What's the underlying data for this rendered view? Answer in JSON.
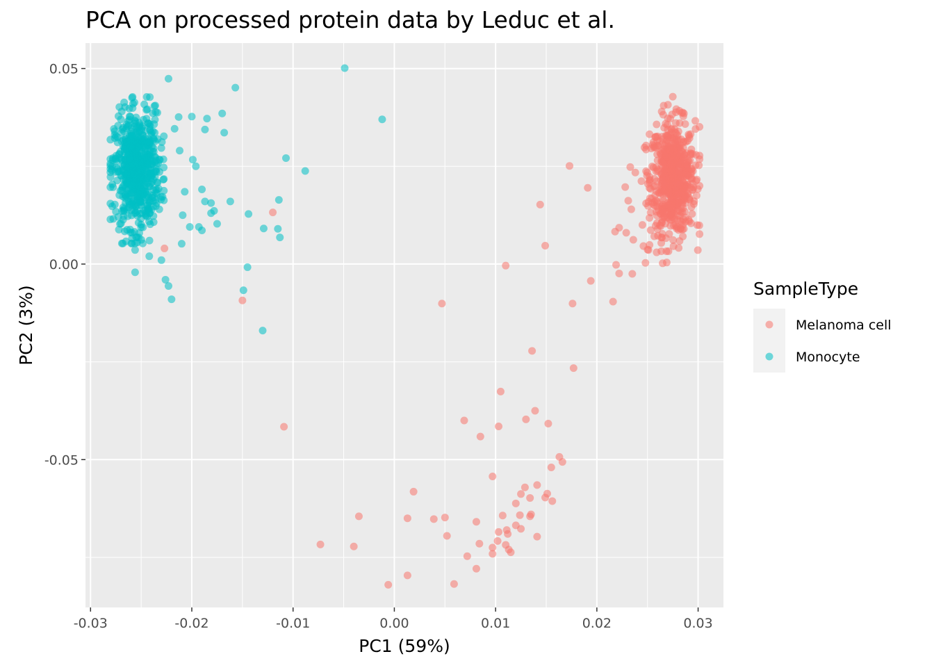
{
  "chart_data": {
    "type": "scatter",
    "title": "PCA on processed protein data by Leduc et al.",
    "xlabel": "PC1 (59%)",
    "ylabel": "PC2 (3%)",
    "xlim": [
      -0.0305,
      0.0325
    ],
    "ylim": [
      -0.0878,
      0.0565
    ],
    "x_ticks": [
      {
        "value": -0.03,
        "label": "-0.03"
      },
      {
        "value": -0.02,
        "label": "-0.02"
      },
      {
        "value": -0.01,
        "label": "-0.01"
      },
      {
        "value": 0.0,
        "label": "0.00"
      },
      {
        "value": 0.01,
        "label": "0.01"
      },
      {
        "value": 0.02,
        "label": "0.02"
      },
      {
        "value": 0.03,
        "label": "0.03"
      }
    ],
    "y_ticks": [
      {
        "value": 0.05,
        "label": "0.05"
      },
      {
        "value": 0.0,
        "label": "0.00"
      },
      {
        "value": -0.05,
        "label": "-0.05"
      }
    ],
    "grid": true,
    "legend": {
      "title": "SampleType",
      "position": "right",
      "entries": [
        "Melanoma cell",
        "Monocyte"
      ]
    },
    "series": [
      {
        "name": "Melanoma cell",
        "color": "#F8766D",
        "cluster": {
          "center": [
            0.0275,
            0.022
          ],
          "sd": [
            0.0011,
            0.0072
          ],
          "count": 650
        },
        "points": [
          [
            0.0173,
            0.0251
          ],
          [
            0.0191,
            0.0195
          ],
          [
            0.0144,
            0.0152
          ],
          [
            0.0149,
            0.0047
          ],
          [
            0.011,
            -0.0004
          ],
          [
            0.0194,
            -0.0043
          ],
          [
            0.0176,
            -0.0101
          ],
          [
            0.0047,
            -0.0101
          ],
          [
            0.0216,
            -0.0096
          ],
          [
            0.0136,
            -0.0222
          ],
          [
            0.0177,
            -0.0266
          ],
          [
            0.0105,
            -0.0326
          ],
          [
            0.0139,
            -0.0375
          ],
          [
            0.013,
            -0.0397
          ],
          [
            0.0069,
            -0.04
          ],
          [
            0.0103,
            -0.0415
          ],
          [
            0.0152,
            -0.0408
          ],
          [
            0.0085,
            -0.0441
          ],
          [
            0.0163,
            -0.0493
          ],
          [
            0.0166,
            -0.0506
          ],
          [
            0.0155,
            -0.052
          ],
          [
            0.0097,
            -0.0543
          ],
          [
            0.0141,
            -0.0565
          ],
          [
            0.0129,
            -0.0571
          ],
          [
            0.0019,
            -0.0582
          ],
          [
            0.0125,
            -0.0588
          ],
          [
            0.0151,
            -0.0587
          ],
          [
            0.0134,
            -0.0598
          ],
          [
            0.0149,
            -0.0597
          ],
          [
            0.0156,
            -0.0606
          ],
          [
            0.012,
            -0.0612
          ],
          [
            0.0107,
            -0.0643
          ],
          [
            0.0135,
            -0.064
          ],
          [
            0.0134,
            -0.0645
          ],
          [
            0.0124,
            -0.0642
          ],
          [
            0.0013,
            -0.065
          ],
          [
            0.005,
            -0.0648
          ],
          [
            0.0039,
            -0.0652
          ],
          [
            -0.0035,
            -0.0645
          ],
          [
            0.0081,
            -0.0659
          ],
          [
            0.012,
            -0.0668
          ],
          [
            0.0125,
            -0.0677
          ],
          [
            0.0111,
            -0.068
          ],
          [
            0.0103,
            -0.0685
          ],
          [
            0.0112,
            -0.069
          ],
          [
            0.0052,
            -0.0695
          ],
          [
            0.0141,
            -0.0697
          ],
          [
            0.0102,
            -0.0708
          ],
          [
            0.0084,
            -0.0715
          ],
          [
            0.011,
            -0.0718
          ],
          [
            0.0097,
            -0.0725
          ],
          [
            0.0113,
            -0.073
          ],
          [
            0.0115,
            -0.0737
          ],
          [
            0.0097,
            -0.0741
          ],
          [
            0.0072,
            -0.0747
          ],
          [
            -0.0073,
            -0.0717
          ],
          [
            -0.004,
            -0.0722
          ],
          [
            0.0081,
            -0.0779
          ],
          [
            0.0013,
            -0.0796
          ],
          [
            -0.0006,
            -0.082
          ],
          [
            0.0059,
            -0.0818
          ],
          [
            -0.0109,
            -0.0416
          ],
          [
            -0.015,
            -0.0093
          ],
          [
            -0.012,
            0.0132
          ],
          [
            -0.0227,
            0.004
          ],
          [
            0.0233,
            0.0248
          ],
          [
            0.0228,
            0.0197
          ],
          [
            0.0231,
            0.0162
          ],
          [
            0.0234,
            0.014
          ],
          [
            0.0218,
            0.0083
          ],
          [
            0.0222,
            0.0093
          ],
          [
            0.0229,
            0.008
          ],
          [
            0.0236,
            0.0062
          ],
          [
            0.0246,
            0.0046
          ],
          [
            0.0219,
            -0.0002
          ],
          [
            0.0222,
            -0.0024
          ],
          [
            0.0235,
            -0.0025
          ],
          [
            0.0248,
            0.0003
          ],
          [
            0.0251,
            0.0036
          ],
          [
            0.0252,
            0.0049
          ],
          [
            0.0259,
            0.003
          ],
          [
            0.0265,
            0.0002
          ],
          [
            0.0269,
            0.0004
          ],
          [
            0.0258,
            0.0098
          ],
          [
            0.0245,
            0.01
          ],
          [
            0.0252,
            0.0118
          ],
          [
            0.0238,
            0.0234
          ],
          [
            0.0244,
            0.0212
          ],
          [
            0.0247,
            0.0298
          ],
          [
            0.0252,
            0.0332
          ],
          [
            0.0259,
            0.0357
          ],
          [
            0.0264,
            0.039
          ],
          [
            0.0275,
            0.0428
          ],
          [
            0.0266,
            0.0405
          ],
          [
            0.0286,
            0.0385
          ],
          [
            0.0292,
            0.0265
          ],
          [
            0.0289,
            0.0228
          ],
          [
            0.0287,
            0.0168
          ]
        ]
      },
      {
        "name": "Monocyte",
        "color": "#00BFC4",
        "cluster": {
          "center": [
            -0.0254,
            0.024
          ],
          "sd": [
            0.0011,
            0.0072
          ],
          "count": 650
        },
        "points": [
          [
            -0.0049,
            0.0501
          ],
          [
            -0.0223,
            0.0474
          ],
          [
            -0.0157,
            0.0451
          ],
          [
            -0.0012,
            0.037
          ],
          [
            -0.0107,
            0.0271
          ],
          [
            -0.0088,
            0.0238
          ],
          [
            -0.0162,
            0.016
          ],
          [
            -0.0114,
            0.0164
          ],
          [
            -0.0144,
            0.0128
          ],
          [
            -0.0129,
            0.0091
          ],
          [
            -0.0115,
            0.009
          ],
          [
            -0.0113,
            0.0068
          ],
          [
            -0.0145,
            -0.0008
          ],
          [
            -0.0149,
            -0.0067
          ],
          [
            -0.013,
            -0.017
          ],
          [
            -0.017,
            0.0385
          ],
          [
            -0.0168,
            0.0336
          ],
          [
            -0.0185,
            0.0372
          ],
          [
            -0.0187,
            0.0344
          ],
          [
            -0.02,
            0.0377
          ],
          [
            -0.0213,
            0.0376
          ],
          [
            -0.0199,
            0.0267
          ],
          [
            -0.0196,
            0.025
          ],
          [
            -0.019,
            0.0191
          ],
          [
            -0.0187,
            0.016
          ],
          [
            -0.0181,
            0.0156
          ],
          [
            -0.0178,
            0.0136
          ],
          [
            -0.0181,
            0.013
          ],
          [
            -0.0175,
            0.0103
          ],
          [
            -0.0193,
            0.0095
          ],
          [
            -0.019,
            0.0086
          ],
          [
            -0.0202,
            0.0095
          ],
          [
            -0.021,
            0.0052
          ],
          [
            -0.0226,
            -0.004
          ],
          [
            -0.0223,
            -0.0056
          ],
          [
            -0.022,
            -0.009
          ],
          [
            -0.0209,
            0.0125
          ],
          [
            -0.0207,
            0.0185
          ],
          [
            -0.0212,
            0.029
          ],
          [
            -0.0217,
            0.0346
          ],
          [
            -0.0237,
            0.0404
          ],
          [
            -0.0258,
            0.041
          ],
          [
            -0.0259,
            0.0425
          ],
          [
            -0.0244,
            0.0396
          ],
          [
            -0.0234,
            0.0387
          ],
          [
            -0.027,
            0.037
          ],
          [
            -0.0276,
            0.0322
          ],
          [
            -0.0278,
            0.0266
          ],
          [
            -0.0279,
            0.024
          ],
          [
            -0.0272,
            0.0088
          ],
          [
            -0.0265,
            0.0058
          ],
          [
            -0.0259,
            0.0066
          ],
          [
            -0.0254,
            0.0055
          ],
          [
            -0.0256,
            0.0036
          ],
          [
            -0.0256,
            -0.0021
          ],
          [
            -0.0242,
            0.002
          ],
          [
            -0.023,
            0.001
          ]
        ]
      }
    ]
  }
}
